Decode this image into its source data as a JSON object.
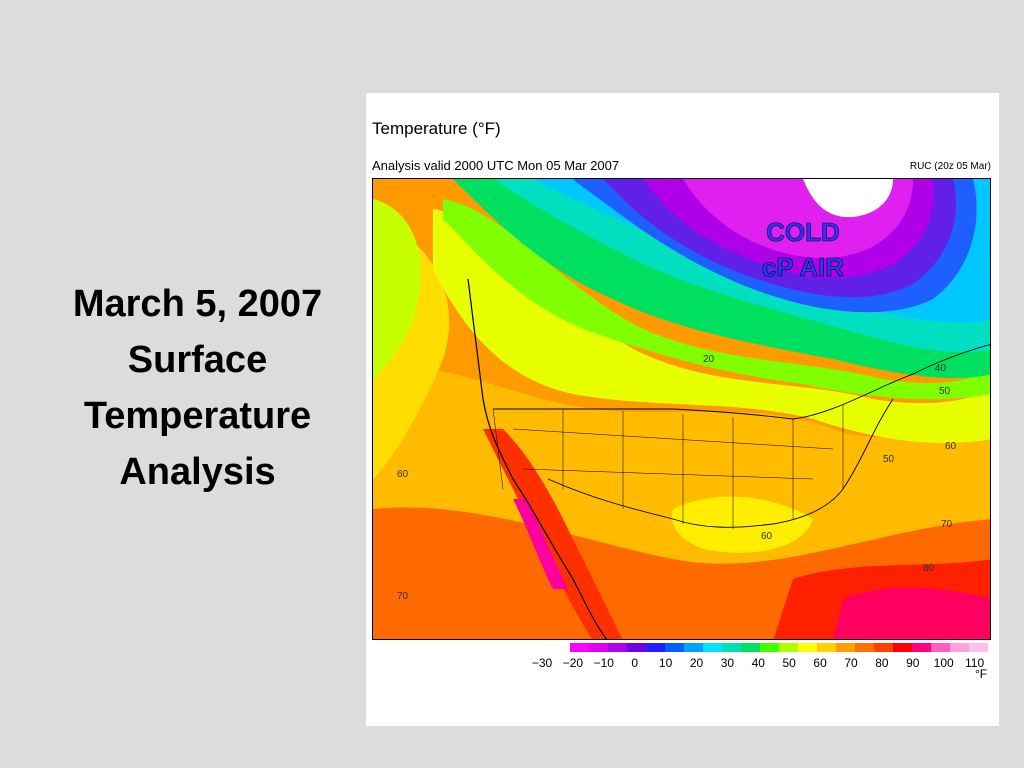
{
  "slide": {
    "title_lines": [
      "March 5, 2007",
      "Surface",
      "Temperature",
      "Analysis"
    ]
  },
  "figure": {
    "title": "Temperature (°F)",
    "subtitle": "Analysis valid 2000 UTC Mon 05 Mar 2007",
    "model_label": "RUC (20z 05 Mar)",
    "annotation_lines": [
      "COLD",
      "cP AIR"
    ],
    "annotation_color": "#2b35ff",
    "contour_labels": [
      "60",
      "70",
      "20",
      "40",
      "50",
      "60",
      "50",
      "60",
      "70",
      "80",
      "60",
      "70"
    ],
    "colorbar": {
      "unit": "°F",
      "tick_labels": [
        "−30",
        "−20",
        "−10",
        "0",
        "10",
        "20",
        "30",
        "40",
        "50",
        "60",
        "70",
        "80",
        "90",
        "100",
        "110"
      ],
      "colors": [
        "#ff00ff",
        "#e000f0",
        "#b000e8",
        "#7000e0",
        "#2020ff",
        "#0060ff",
        "#00a0ff",
        "#00e0ff",
        "#00e0b0",
        "#00e060",
        "#40ff00",
        "#b0ff00",
        "#ffff00",
        "#ffd000",
        "#ffa000",
        "#ff7000",
        "#ff4000",
        "#ff0000",
        "#ff0080",
        "#ff60c0",
        "#ffa0e0",
        "#ffc0f0"
      ]
    }
  }
}
